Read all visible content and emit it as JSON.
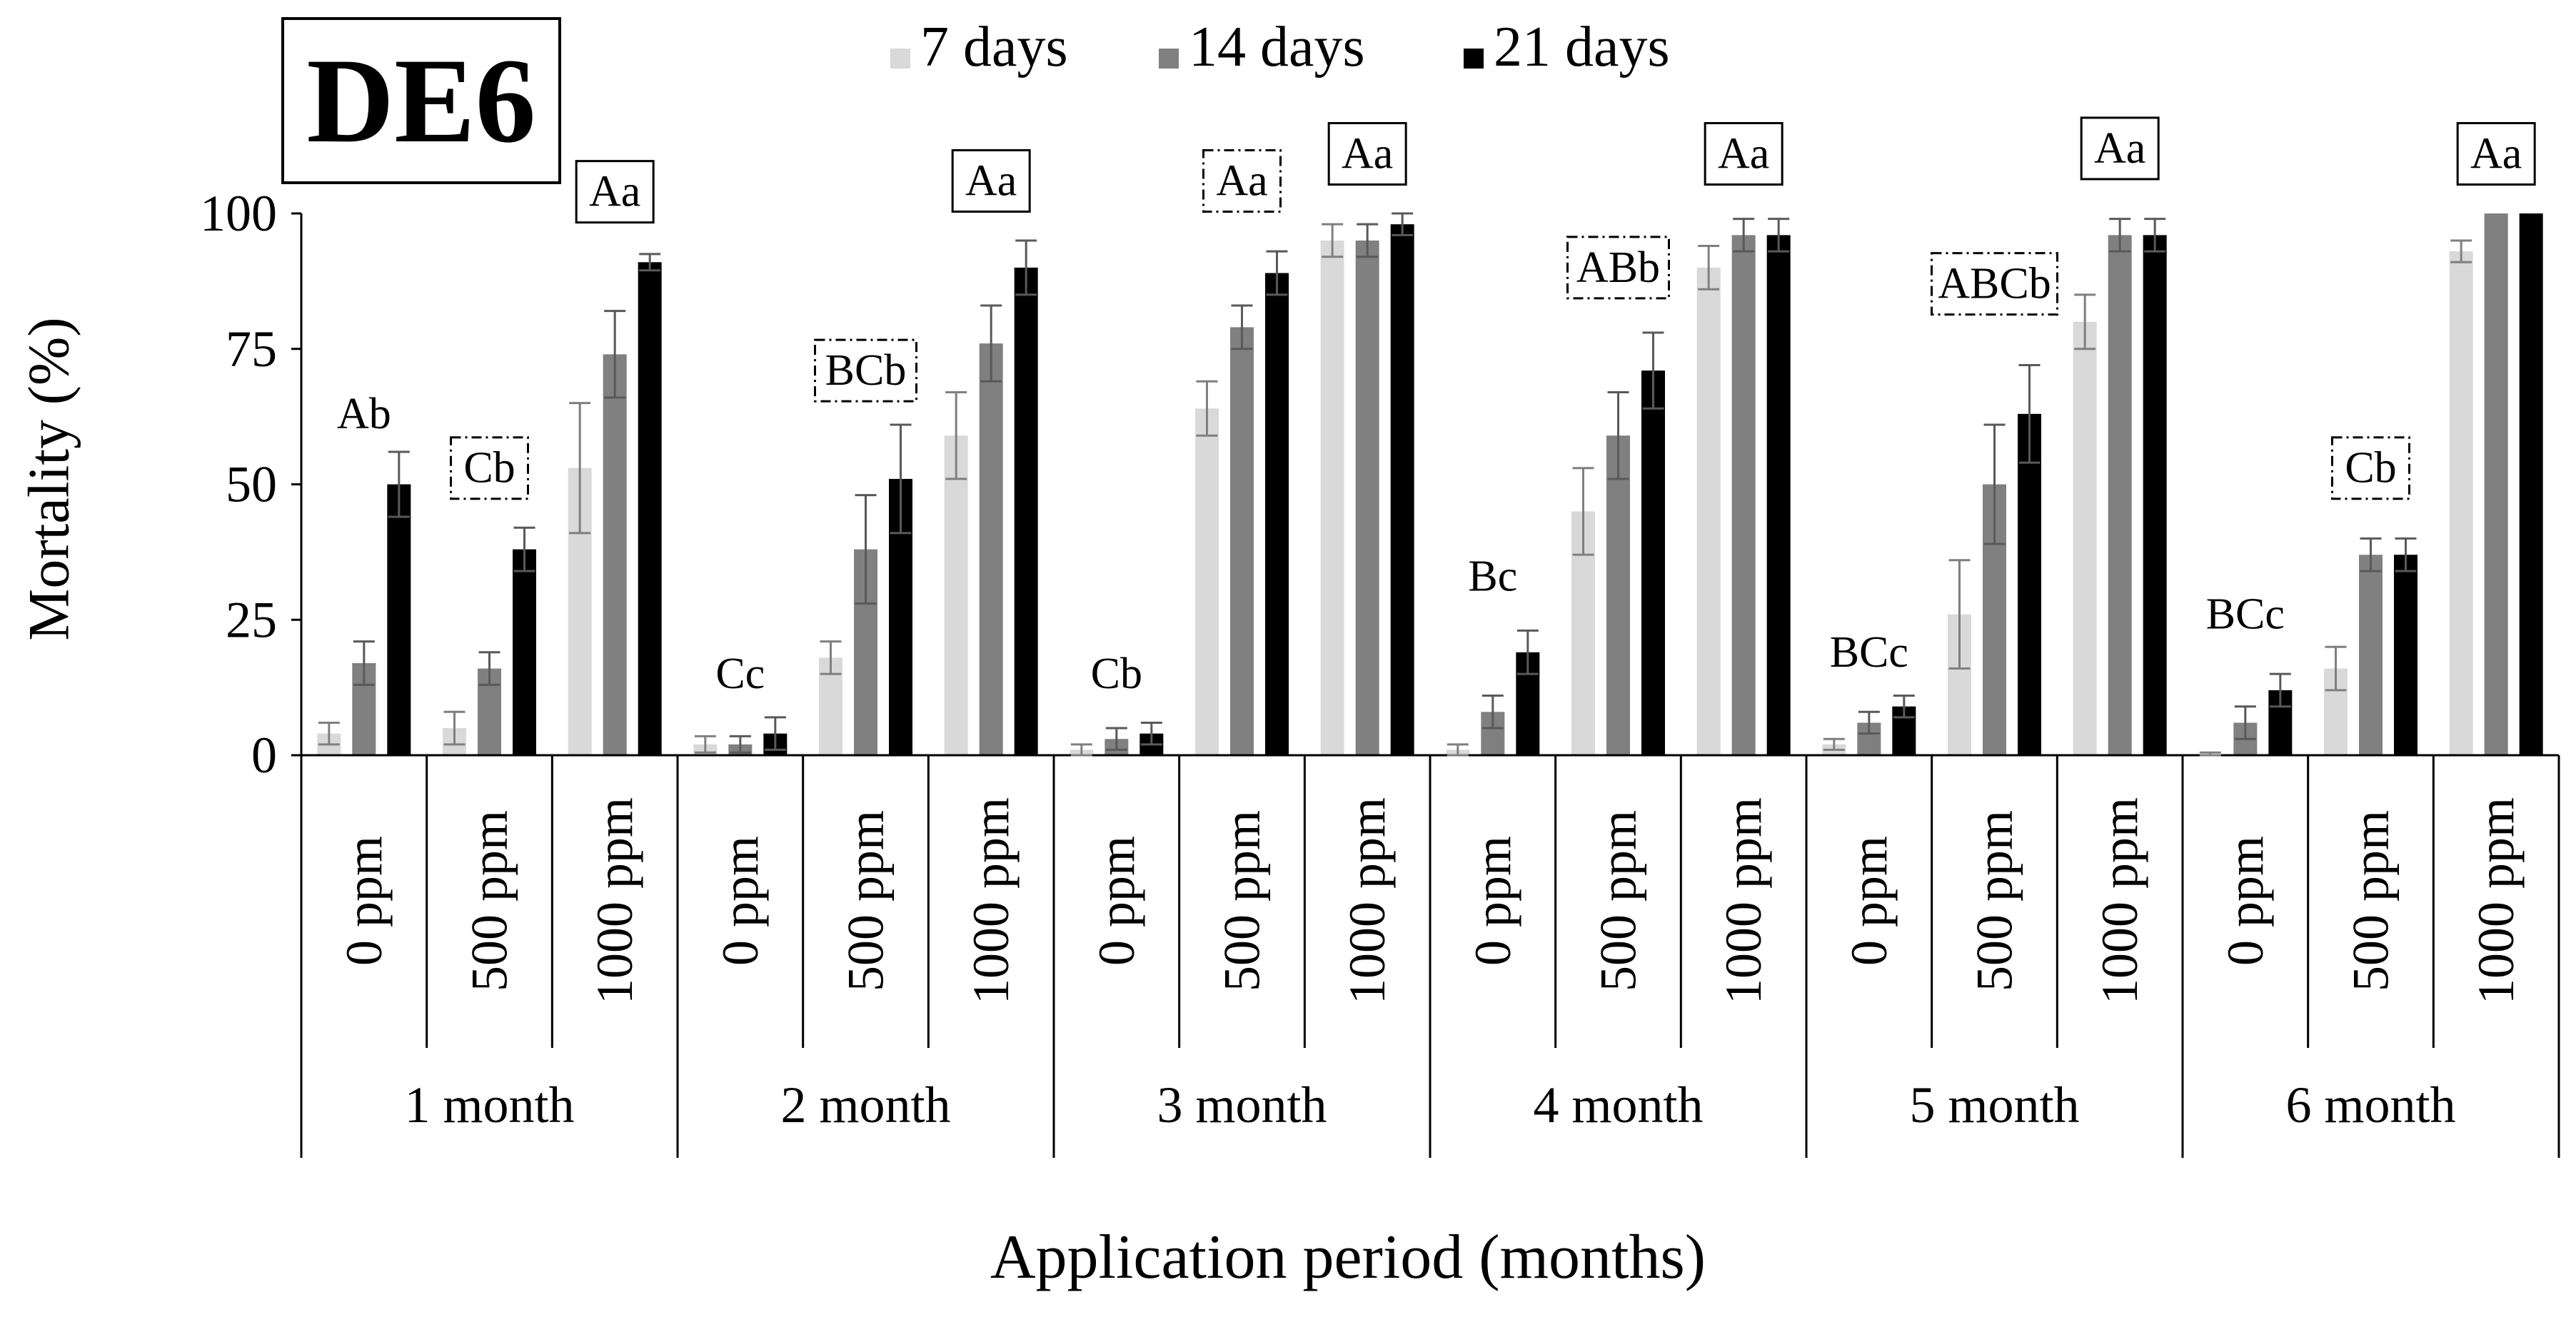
{
  "chart_data": {
    "type": "bar",
    "title": "DE6",
    "xlabel": "Application period (months)",
    "ylabel": "Mortality (%)",
    "ylim": [
      0,
      100
    ],
    "yticks": [
      0,
      25,
      50,
      75,
      100
    ],
    "ytick_labels": [
      "0",
      "25",
      "50",
      "75",
      "100"
    ],
    "legend_position": "top-center",
    "groups": [
      "1 month",
      "2 month",
      "3 month",
      "4 month",
      "5 month",
      "6 month"
    ],
    "concentrations": [
      "0 ppm",
      "500 ppm",
      "1000 ppm"
    ],
    "series": [
      {
        "name": "7 days",
        "color": "#d9d9d9",
        "values": [
          4,
          5,
          53,
          2,
          18,
          59,
          1,
          64,
          95,
          1,
          45,
          90,
          2,
          26,
          80,
          0,
          16,
          93
        ],
        "errors": [
          2,
          3,
          12,
          1.5,
          3,
          8,
          1,
          5,
          3,
          1,
          8,
          4,
          1,
          10,
          5,
          0.5,
          4,
          2
        ]
      },
      {
        "name": "14 days",
        "color": "#808080",
        "values": [
          17,
          16,
          74,
          2,
          38,
          76,
          3,
          79,
          95,
          8,
          59,
          96,
          6,
          50,
          96,
          6,
          37,
          100
        ],
        "errors": [
          4,
          3,
          8,
          1.5,
          10,
          7,
          2,
          4,
          3,
          3,
          8,
          3,
          2,
          11,
          3,
          3,
          3,
          0
        ]
      },
      {
        "name": "21 days",
        "color": "#000000",
        "values": [
          50,
          38,
          91,
          4,
          51,
          90,
          4,
          89,
          98,
          19,
          71,
          96,
          9,
          63,
          96,
          12,
          37,
          100
        ],
        "errors": [
          6,
          4,
          1.5,
          3,
          10,
          5,
          2,
          4,
          2,
          4,
          7,
          3,
          2,
          9,
          3,
          3,
          3,
          0
        ]
      }
    ],
    "letters": [
      {
        "text": "Ab",
        "bar": 0,
        "style": "plain",
        "value": 63
      },
      {
        "text": "Cb",
        "bar": 1,
        "style": "dashdot",
        "value": 53
      },
      {
        "text": "Aa",
        "bar": 2,
        "style": "box",
        "value": 104
      },
      {
        "text": "Cc",
        "bar": 3,
        "style": "plain",
        "value": 15
      },
      {
        "text": "BCb",
        "bar": 4,
        "style": "dashdot",
        "value": 71
      },
      {
        "text": "Aa",
        "bar": 5,
        "style": "box",
        "value": 106
      },
      {
        "text": "Cb",
        "bar": 6,
        "style": "plain",
        "value": 15
      },
      {
        "text": "Aa",
        "bar": 7,
        "style": "dashdot",
        "value": 106
      },
      {
        "text": "Aa",
        "bar": 8,
        "style": "box",
        "value": 111
      },
      {
        "text": "Bc",
        "bar": 9,
        "style": "plain",
        "value": 33
      },
      {
        "text": "ABb",
        "bar": 10,
        "style": "dashdot",
        "value": 90
      },
      {
        "text": "Aa",
        "bar": 11,
        "style": "box",
        "value": 111
      },
      {
        "text": "BCc",
        "bar": 12,
        "style": "plain",
        "value": 19
      },
      {
        "text": "ABCb",
        "bar": 13,
        "style": "dashdot",
        "value": 87
      },
      {
        "text": "Aa",
        "bar": 14,
        "style": "box",
        "value": 112
      },
      {
        "text": "BCc",
        "bar": 15,
        "style": "plain",
        "value": 26
      },
      {
        "text": "Cb",
        "bar": 16,
        "style": "dashdot",
        "value": 53
      },
      {
        "text": "Aa",
        "bar": 17,
        "style": "box",
        "value": 111
      }
    ]
  }
}
